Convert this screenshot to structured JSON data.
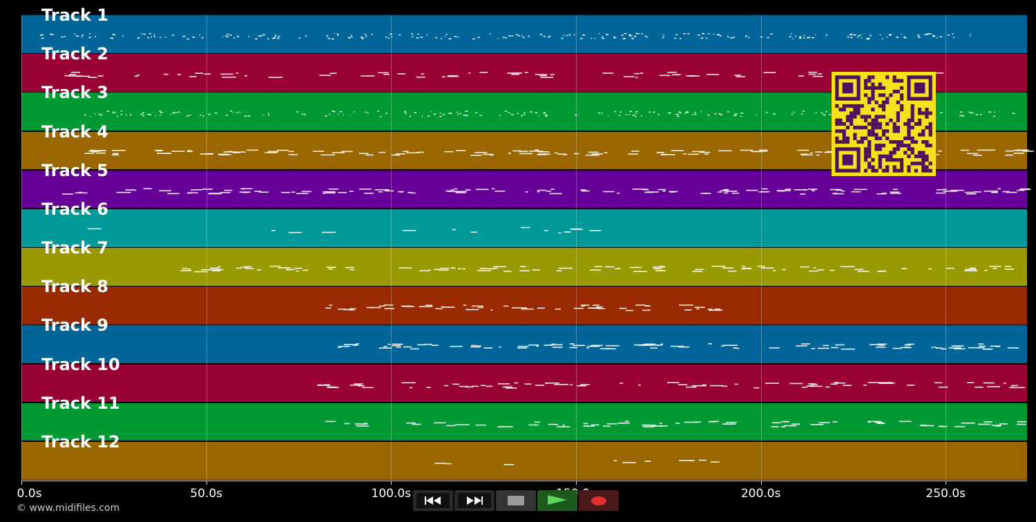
{
  "tracks": [
    {
      "label": "Track 1",
      "color": "#006699"
    },
    {
      "label": "Track 2",
      "color": "#990033"
    },
    {
      "label": "Track 3",
      "color": "#009933"
    },
    {
      "label": "Track 4",
      "color": "#996600"
    },
    {
      "label": "Track 5",
      "color": "#660099"
    },
    {
      "label": "Track 6",
      "color": "#009999"
    },
    {
      "label": "Track 7",
      "color": "#999900"
    },
    {
      "label": "Track 8",
      "color": "#992900"
    },
    {
      "label": "Track 9",
      "color": "#006699"
    },
    {
      "label": "Track 10",
      "color": "#990033"
    },
    {
      "label": "Track 11",
      "color": "#009933"
    },
    {
      "label": "Track 12",
      "color": "#996600"
    }
  ],
  "timeline": {
    "ticks": [
      "0.0s",
      "50.0s",
      "100.0s",
      "150.0s",
      "200.0s",
      "250.0s"
    ],
    "tick_values": [
      0,
      50,
      100,
      150,
      200,
      250
    ],
    "max_seconds": 272
  },
  "transport": {
    "rewind": "rewind-icon",
    "forward": "fast-forward-icon",
    "stop": "stop-icon",
    "play": "play-icon",
    "record": "record-icon"
  },
  "copyright": "© www.midifiles.com",
  "qr_colors": {
    "fg": "#4b1060",
    "bg": "#f7e219"
  },
  "note_color": "#ffffff"
}
